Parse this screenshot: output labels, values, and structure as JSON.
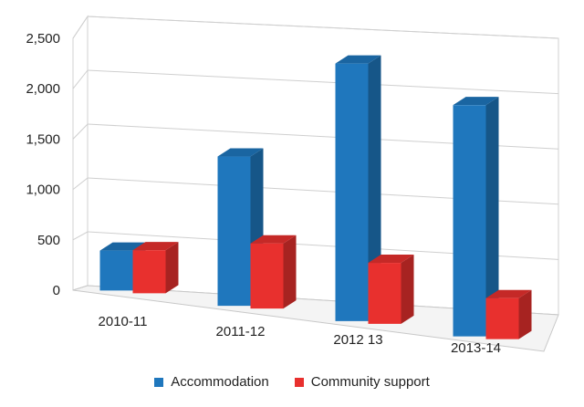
{
  "chart_data": {
    "type": "bar",
    "style": "3d-clustered-column",
    "categories": [
      "2010-11",
      "2011-12",
      "2012 13",
      "2013-14"
    ],
    "series": [
      {
        "name": "Accommodation",
        "color": "#1f77bd",
        "values": [
          380,
          1420,
          2450,
          2200
        ]
      },
      {
        "name": "Community support",
        "color": "#e8302e",
        "values": [
          410,
          620,
          580,
          390
        ]
      }
    ],
    "y_ticks": [
      "0",
      "500",
      "1,000",
      "1,500",
      "2,000",
      "2,500"
    ],
    "ylim": [
      0,
      2500
    ],
    "grid": true,
    "legend_position": "bottom",
    "title": "",
    "xlabel": "",
    "ylabel": ""
  }
}
